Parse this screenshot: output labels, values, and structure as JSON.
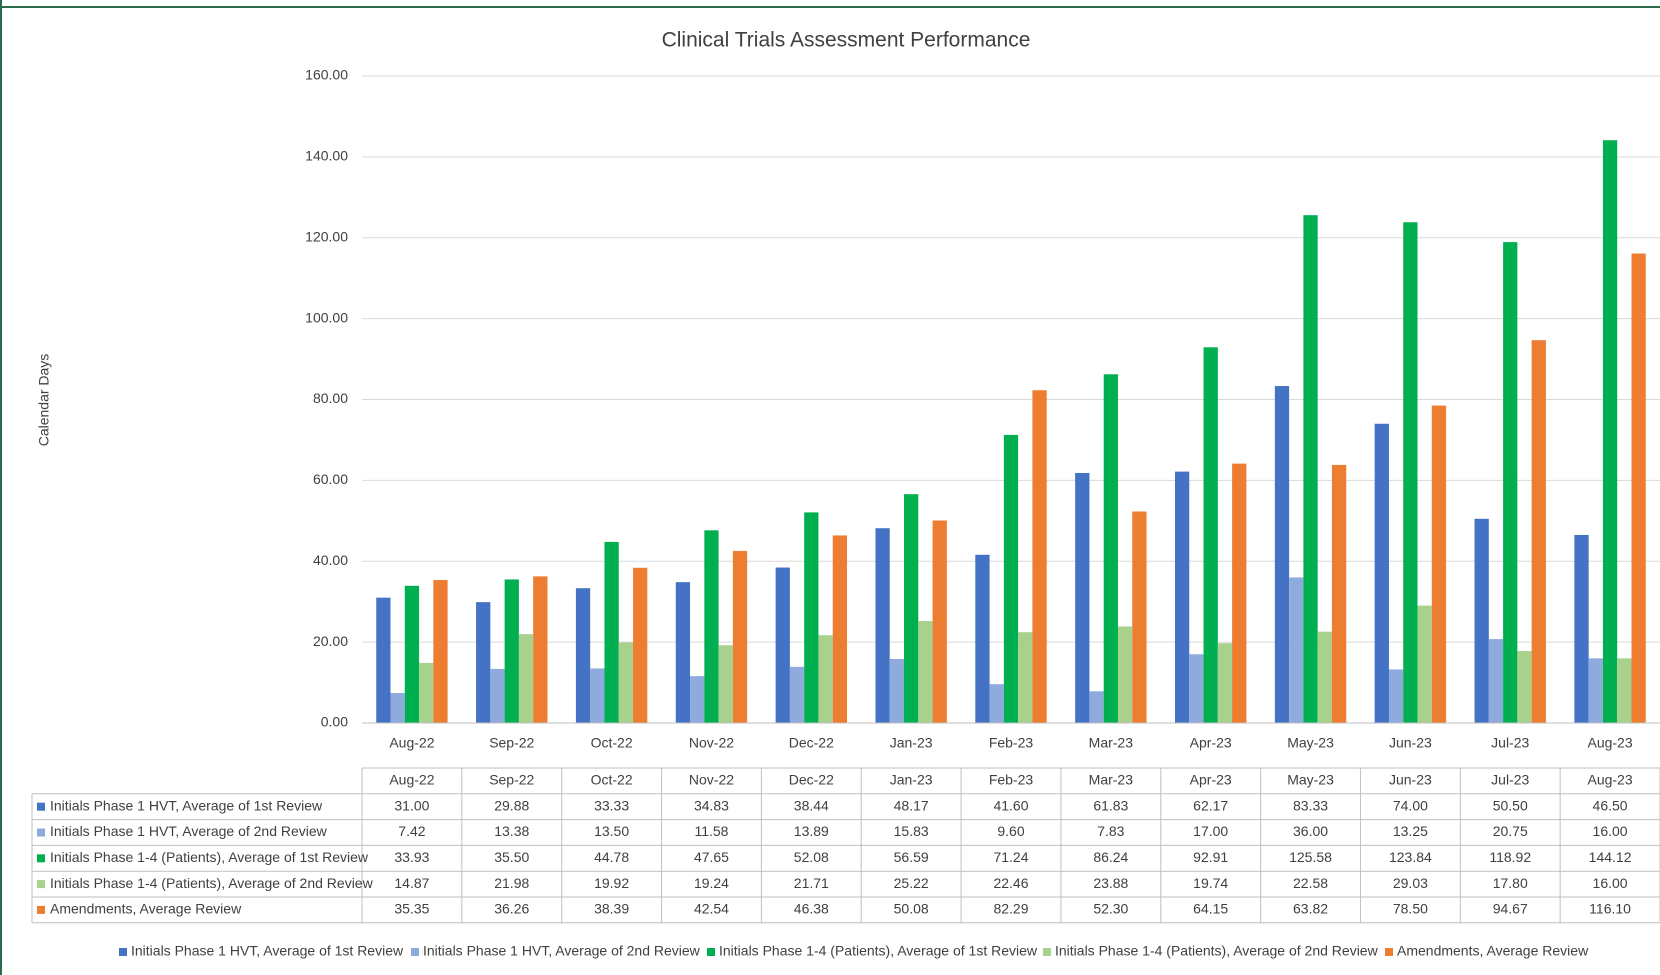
{
  "chart_data": {
    "type": "bar",
    "title": "Clinical Trials Assessment Performance",
    "y_label": "Calendar Days",
    "categories": [
      "Aug-22",
      "Sep-22",
      "Oct-22",
      "Nov-22",
      "Dec-22",
      "Jan-23",
      "Feb-23",
      "Mar-23",
      "Apr-23",
      "May-23",
      "Jun-23",
      "Jul-23",
      "Aug-23"
    ],
    "series": [
      {
        "name": "Initials Phase 1 HVT, Average of 1st Review",
        "color": "#4472c4",
        "values": [
          31,
          29.88,
          33.33,
          34.83,
          38.44,
          48.17,
          41.6,
          61.83,
          62.17,
          83.33,
          74,
          50.5,
          46.5
        ],
        "value_labels": [
          "31.00",
          "29.88",
          "33.33",
          "34.83",
          "38.44",
          "48.17",
          "41.60",
          "61.83",
          "62.17",
          "83.33",
          "74.00",
          "50.50",
          "46.50"
        ]
      },
      {
        "name": "Initials Phase 1 HVT, Average of 2nd Review",
        "color": "#8faadc",
        "values": [
          7.42,
          13.38,
          13.5,
          11.58,
          13.89,
          15.83,
          9.6,
          7.83,
          17,
          36,
          13.25,
          20.75,
          16
        ],
        "value_labels": [
          "7.42",
          "13.38",
          "13.50",
          "11.58",
          "13.89",
          "15.83",
          "9.60",
          "7.83",
          "17.00",
          "36.00",
          "13.25",
          "20.75",
          "16.00"
        ]
      },
      {
        "name": "Initials Phase 1-4 (Patients), Average of 1st Review",
        "color": "#00b050",
        "values": [
          33.93,
          35.5,
          44.78,
          47.65,
          52.08,
          56.59,
          71.24,
          86.24,
          92.91,
          125.58,
          123.84,
          118.92,
          144.12
        ],
        "value_labels": [
          "33.93",
          "35.50",
          "44.78",
          "47.65",
          "52.08",
          "56.59",
          "71.24",
          "86.24",
          "92.91",
          "125.58",
          "123.84",
          "118.92",
          "144.12"
        ]
      },
      {
        "name": "Initials Phase 1-4 (Patients), Average of 2nd Review",
        "color": "#a9d18e",
        "values": [
          14.87,
          21.98,
          19.92,
          19.24,
          21.71,
          25.22,
          22.46,
          23.88,
          19.74,
          22.58,
          29.03,
          17.8,
          16
        ],
        "value_labels": [
          "14.87",
          "21.98",
          "19.92",
          "19.24",
          "21.71",
          "25.22",
          "22.46",
          "23.88",
          "19.74",
          "22.58",
          "29.03",
          "17.80",
          "16.00"
        ]
      },
      {
        "name": "Amendments, Average Review",
        "color": "#ed7d31",
        "values": [
          35.35,
          36.26,
          38.39,
          42.54,
          46.38,
          50.08,
          82.29,
          52.3,
          64.15,
          63.82,
          78.5,
          94.67,
          116.1
        ],
        "value_labels": [
          "35.35",
          "36.26",
          "38.39",
          "42.54",
          "46.38",
          "50.08",
          "82.29",
          "52.30",
          "64.15",
          "63.82",
          "78.50",
          "94.67",
          "116.10"
        ]
      }
    ],
    "ylim": [
      0,
      160
    ],
    "yticks": [
      {
        "value": 0,
        "label": "0.00"
      },
      {
        "value": 20,
        "label": "20.00"
      },
      {
        "value": 40,
        "label": "40.00"
      },
      {
        "value": 60,
        "label": "60.00"
      },
      {
        "value": 80,
        "label": "80.00"
      },
      {
        "value": 100,
        "label": "100.00"
      },
      {
        "value": 120,
        "label": "120.00"
      },
      {
        "value": 140,
        "label": "140.00"
      },
      {
        "value": 160,
        "label": "160.00"
      }
    ],
    "grid": true
  }
}
